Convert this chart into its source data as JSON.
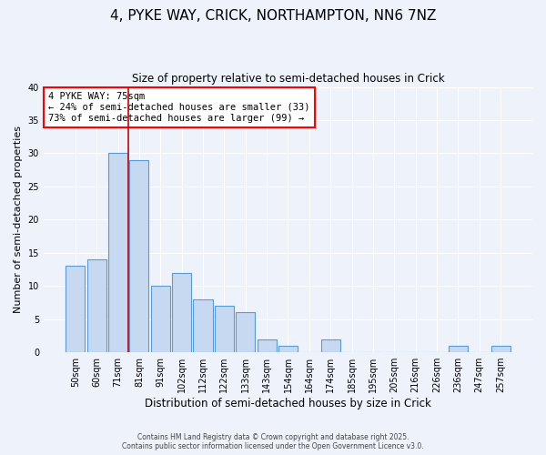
{
  "title1": "4, PYKE WAY, CRICK, NORTHAMPTON, NN6 7NZ",
  "title2": "Size of property relative to semi-detached houses in Crick",
  "xlabel": "Distribution of semi-detached houses by size in Crick",
  "ylabel": "Number of semi-detached properties",
  "bar_labels": [
    "50sqm",
    "60sqm",
    "71sqm",
    "81sqm",
    "91sqm",
    "102sqm",
    "112sqm",
    "122sqm",
    "133sqm",
    "143sqm",
    "154sqm",
    "164sqm",
    "174sqm",
    "185sqm",
    "195sqm",
    "205sqm",
    "216sqm",
    "226sqm",
    "236sqm",
    "247sqm",
    "257sqm"
  ],
  "bar_values": [
    13,
    14,
    30,
    29,
    10,
    12,
    8,
    7,
    6,
    2,
    1,
    0,
    2,
    0,
    0,
    0,
    0,
    0,
    1,
    0,
    1
  ],
  "bar_color": "#c6d9f0",
  "bar_edge_color": "#5b9bd5",
  "annotation_title": "4 PYKE WAY: 75sqm",
  "annotation_line1": "← 24% of semi-detached houses are smaller (33)",
  "annotation_line2": "73% of semi-detached houses are larger (99) →",
  "ylim": [
    0,
    40
  ],
  "background_color": "#edf2fb",
  "grid_color": "#ffffff",
  "red_line_color": "#cc0000",
  "footer1": "Contains HM Land Registry data © Crown copyright and database right 2025.",
  "footer2": "Contains public sector information licensed under the Open Government Licence v3.0."
}
